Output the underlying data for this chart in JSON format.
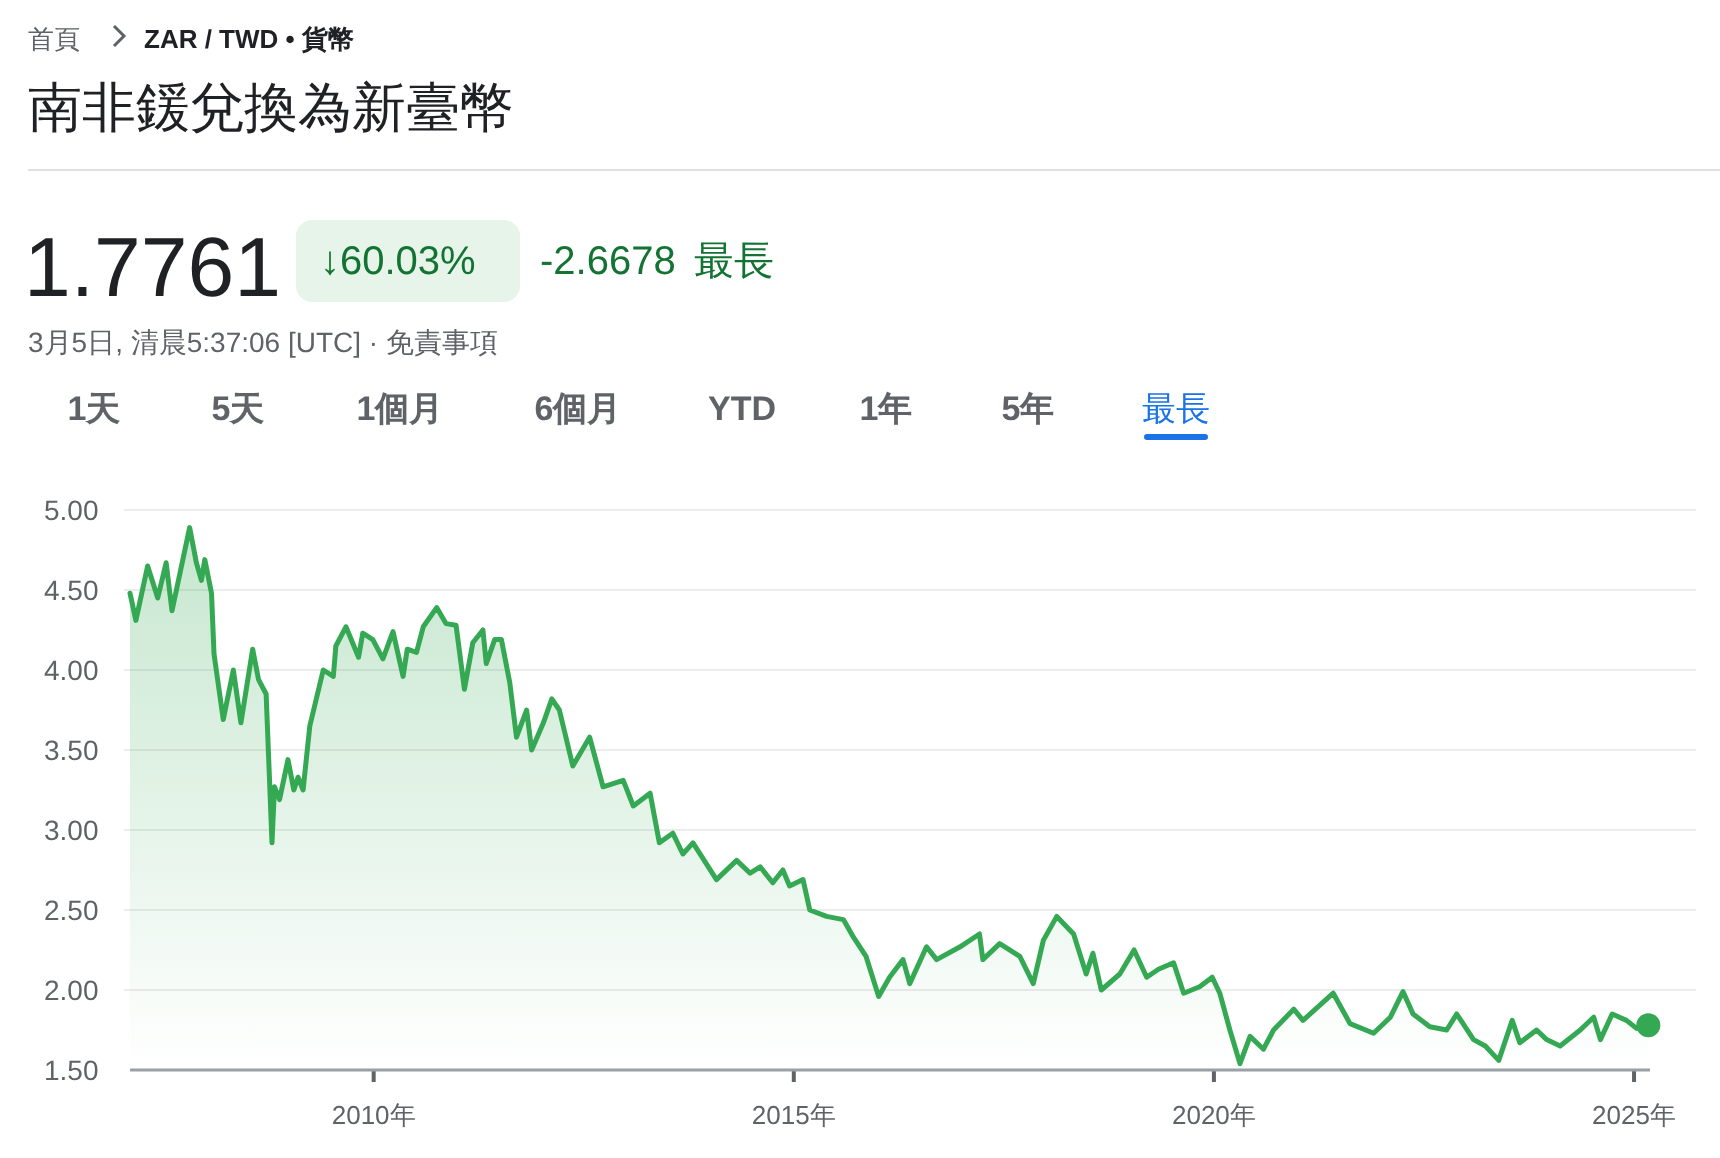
{
  "chart_data": {
    "type": "area",
    "title": "南非鍰兌換為新臺幣",
    "annotations": [
      "首頁",
      "ZAR / TWD • 貨幣",
      "1.7761",
      "↓60.03%",
      "-2.6678",
      "最長",
      "3月5日, 清晨5:37:06 [UTC] · 免責事項",
      "1天",
      "5天",
      "1個月",
      "6個月",
      "YTD",
      "1年",
      "5年",
      "最長"
    ],
    "series": [
      {
        "color": "#34a853",
        "x": [
          2007.1,
          2007.17,
          2007.31,
          2007.43,
          2007.53,
          2007.6,
          2007.81,
          2007.89,
          2007.95,
          2007.99,
          2008.07,
          2008.1,
          2008.21,
          2008.33,
          2008.42,
          2008.56,
          2008.63,
          2008.72,
          2008.79,
          2008.82,
          2008.88,
          2008.98,
          2009.05,
          2009.1,
          2009.16,
          2009.24,
          2009.4,
          2009.52,
          2009.55,
          2009.67,
          2009.82,
          2009.87,
          2009.99,
          2010.11,
          2010.23,
          2010.35,
          2010.4,
          2010.51,
          2010.59,
          2010.75,
          2010.86,
          2010.98,
          2011.08,
          2011.18,
          2011.3,
          2011.34,
          2011.44,
          2011.52,
          2011.62,
          2011.7,
          2011.82,
          2011.88,
          2012.02,
          2012.12,
          2012.21,
          2012.37,
          2012.57,
          2012.73,
          2012.97,
          2013.09,
          2013.29,
          2013.4,
          2013.56,
          2013.68,
          2013.8,
          2014.08,
          2014.32,
          2014.48,
          2014.6,
          2014.75,
          2014.87,
          2014.95,
          2015.11,
          2015.19,
          2015.39,
          2015.59,
          2015.71,
          2015.86,
          2016.01,
          2016.14,
          2016.3,
          2016.38,
          2016.58,
          2016.7,
          2016.98,
          2017.21,
          2017.25,
          2017.45,
          2017.69,
          2017.85,
          2017.97,
          2018.13,
          2018.33,
          2018.48,
          2018.56,
          2018.66,
          2018.88,
          2019.05,
          2019.2,
          2019.34,
          2019.52,
          2019.64,
          2019.83,
          2019.98,
          2020.07,
          2020.19,
          2020.31,
          2020.43,
          2020.59,
          2020.71,
          2020.95,
          2021.06,
          2021.42,
          2021.62,
          2021.9,
          2022.1,
          2022.25,
          2022.37,
          2022.57,
          2022.77,
          2022.89,
          2023.09,
          2023.23,
          2023.39,
          2023.55,
          2023.64,
          2023.84,
          2023.96,
          2024.12,
          2024.36,
          2024.52,
          2024.6,
          2024.74,
          2024.91,
          2025.03,
          2025.17
        ],
        "values": [
          4.48,
          4.31,
          4.65,
          4.45,
          4.67,
          4.37,
          4.89,
          4.67,
          4.56,
          4.69,
          4.48,
          4.1,
          3.69,
          4.0,
          3.67,
          4.13,
          3.94,
          3.85,
          2.92,
          3.27,
          3.19,
          3.44,
          3.25,
          3.33,
          3.25,
          3.65,
          4.0,
          3.96,
          4.15,
          4.27,
          4.08,
          4.23,
          4.19,
          4.07,
          4.24,
          3.96,
          4.13,
          4.11,
          4.27,
          4.39,
          4.29,
          4.28,
          3.88,
          4.17,
          4.25,
          4.04,
          4.19,
          4.19,
          3.92,
          3.58,
          3.75,
          3.5,
          3.67,
          3.82,
          3.75,
          3.4,
          3.58,
          3.27,
          3.31,
          3.15,
          3.23,
          2.92,
          2.98,
          2.85,
          2.92,
          2.69,
          2.81,
          2.73,
          2.77,
          2.67,
          2.75,
          2.65,
          2.69,
          2.5,
          2.46,
          2.44,
          2.33,
          2.21,
          1.96,
          2.08,
          2.19,
          2.04,
          2.27,
          2.19,
          2.27,
          2.35,
          2.19,
          2.29,
          2.21,
          2.04,
          2.31,
          2.46,
          2.35,
          2.1,
          2.23,
          2.0,
          2.1,
          2.25,
          2.08,
          2.13,
          2.17,
          1.98,
          2.02,
          2.08,
          1.98,
          1.75,
          1.54,
          1.71,
          1.63,
          1.75,
          1.88,
          1.81,
          1.98,
          1.79,
          1.73,
          1.83,
          1.99,
          1.85,
          1.77,
          1.75,
          1.85,
          1.69,
          1.65,
          1.56,
          1.81,
          1.67,
          1.75,
          1.69,
          1.65,
          1.75,
          1.83,
          1.69,
          1.85,
          1.81,
          1.76,
          1.78
        ]
      },
      {
        "type": "scatter",
        "color": "#34a853",
        "x": [
          2025.17
        ],
        "values": [
          1.78
        ]
      }
    ],
    "xlim": [
      2007.1,
      2025.19
    ],
    "ylim": [
      1.5,
      5.0
    ],
    "xticks": [
      {
        "value": 2010,
        "label": "2010年"
      },
      {
        "value": 2015,
        "label": "2015年"
      },
      {
        "value": 2020,
        "label": "2020年"
      },
      {
        "value": 2025,
        "label": "2025年"
      }
    ],
    "yticks": [
      {
        "value": 1.5,
        "label": "1.50"
      },
      {
        "value": 2,
        "label": "2.00"
      },
      {
        "value": 2.5,
        "label": "2.50"
      },
      {
        "value": 3,
        "label": "3.00"
      },
      {
        "value": 3.5,
        "label": "3.50"
      },
      {
        "value": 4,
        "label": "4.00"
      },
      {
        "value": 4.5,
        "label": "4.50"
      },
      {
        "value": 5,
        "label": "5.00"
      }
    ],
    "grid": "y"
  }
}
